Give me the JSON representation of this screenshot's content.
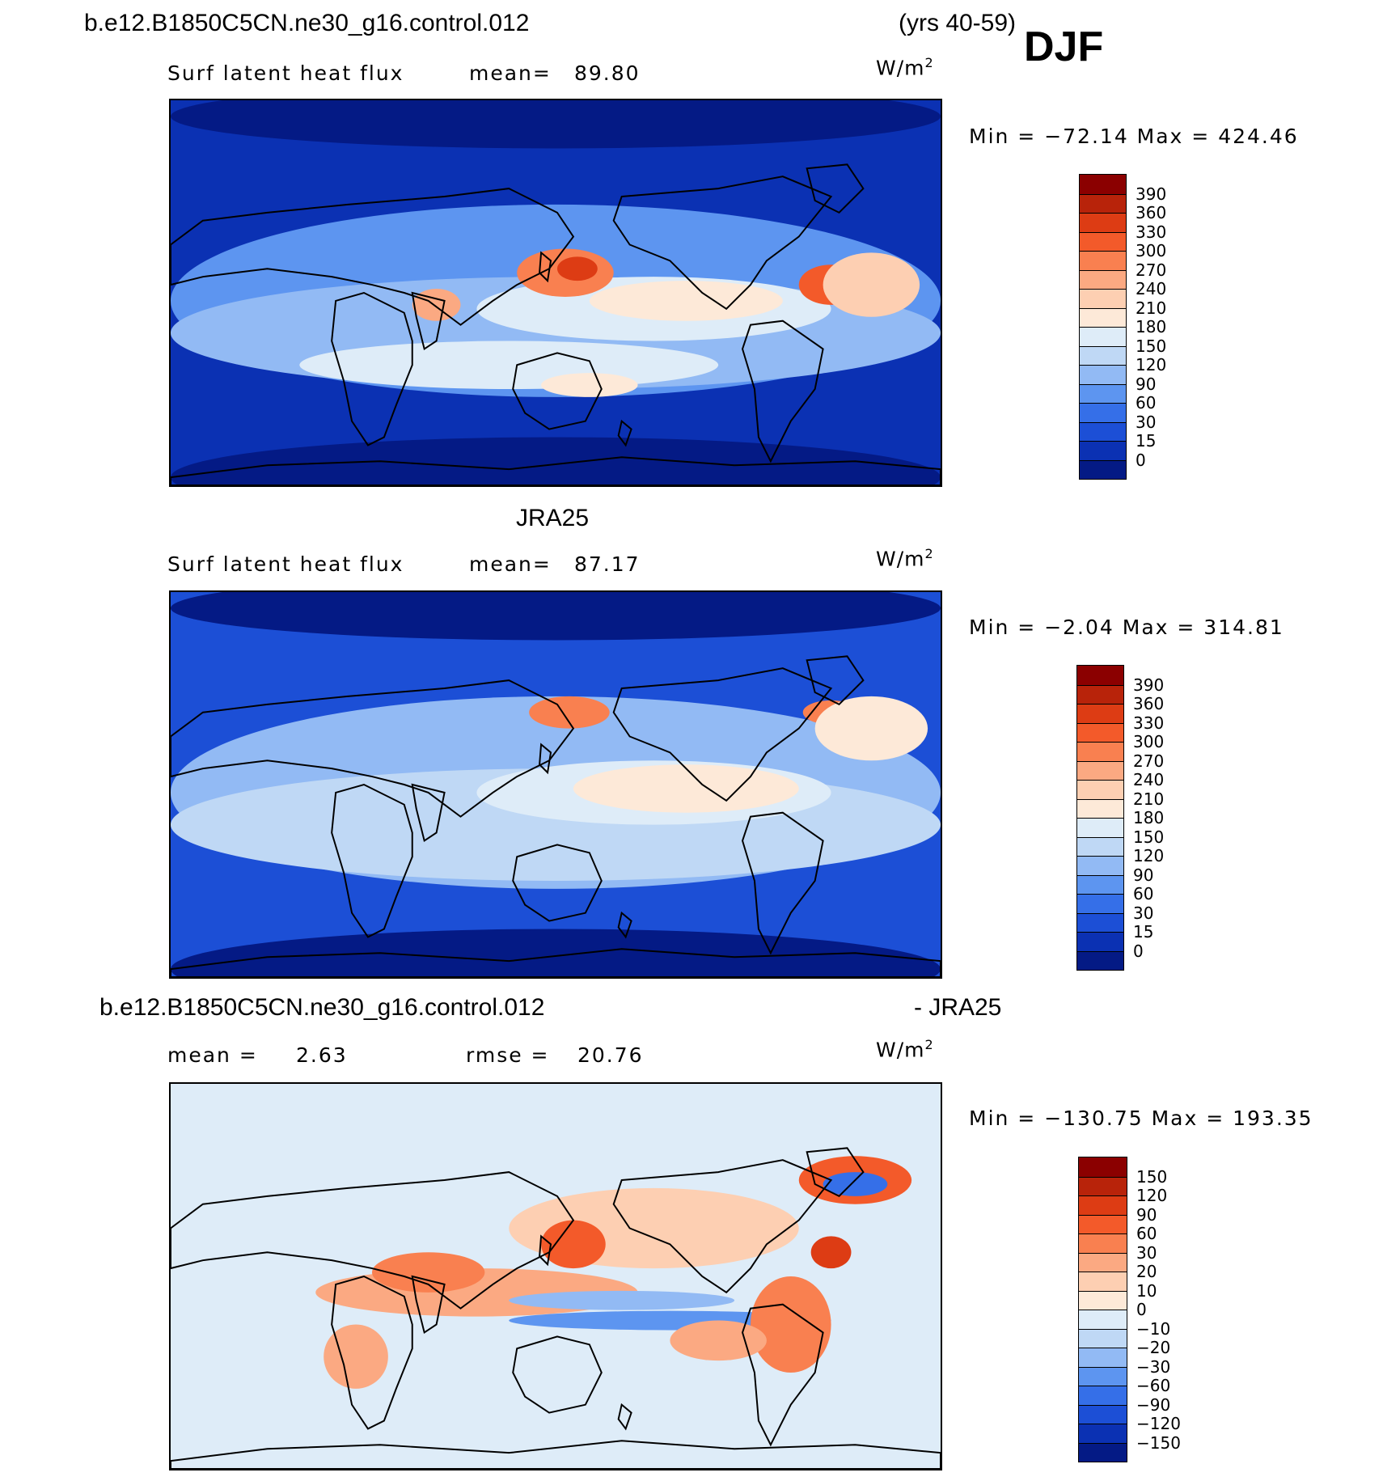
{
  "header": {
    "case_name": "b.e12.B1850C5CN.ne30_g16.control.012",
    "years": "(yrs 40-59)",
    "season": "DJF"
  },
  "panels": [
    {
      "dataset": "b.e12.B1850C5CN.ne30_g16.control.012",
      "variable": "Surf latent heat flux",
      "stat1_label": "mean=",
      "stat1_value": "89.80",
      "units_base": "W/m",
      "units_exp": "2",
      "minmax": "Min = −72.14 Max = 424.46",
      "min": -72.14,
      "max": 424.46
    },
    {
      "dataset": "JRA25",
      "variable": "Surf latent heat flux",
      "stat1_label": "mean=",
      "stat1_value": "87.17",
      "units_base": "W/m",
      "units_exp": "2",
      "minmax": "Min = −2.04 Max = 314.81",
      "min": -2.04,
      "max": 314.81
    },
    {
      "dataset": "b.e12.B1850C5CN.ne30_g16.control.012",
      "dataset_suffix": "- JRA25",
      "stat1_label": "mean =",
      "stat1_value": "2.63",
      "stat2_label": "rmse =",
      "stat2_value": "20.76",
      "units_base": "W/m",
      "units_exp": "2",
      "minmax": "Min = −130.75 Max = 193.35",
      "min": -130.75,
      "max": 193.35
    }
  ],
  "chart_data": [
    {
      "type": "heatmap",
      "title": "b.e12.B1850C5CN.ne30_g16.control.012 (yrs 40-59) DJF",
      "variable": "Surf latent heat flux",
      "units": "W/m2",
      "mean": 89.8,
      "min": -72.14,
      "max": 424.46,
      "colorbar_levels": [
        "390",
        "360",
        "330",
        "300",
        "270",
        "240",
        "210",
        "180",
        "150",
        "120",
        "90",
        "60",
        "30",
        "15",
        "0"
      ],
      "colorbar_colors": [
        "#8b0000",
        "#b8230a",
        "#dd3c14",
        "#f35a2a",
        "#f98050",
        "#fba982",
        "#fdcfb2",
        "#fde9d8",
        "#deecf8",
        "#bfd8f5",
        "#92baf4",
        "#5d95f0",
        "#356fe8",
        "#1c4fd6",
        "#0b31b3",
        "#041a85"
      ]
    },
    {
      "type": "heatmap",
      "title": "JRA25",
      "variable": "Surf latent heat flux",
      "units": "W/m2",
      "mean": 87.17,
      "min": -2.04,
      "max": 314.81,
      "colorbar_levels": [
        "390",
        "360",
        "330",
        "300",
        "270",
        "240",
        "210",
        "180",
        "150",
        "120",
        "90",
        "60",
        "30",
        "15",
        "0"
      ],
      "colorbar_colors": [
        "#8b0000",
        "#b8230a",
        "#dd3c14",
        "#f35a2a",
        "#f98050",
        "#fba982",
        "#fdcfb2",
        "#fde9d8",
        "#deecf8",
        "#bfd8f5",
        "#92baf4",
        "#5d95f0",
        "#356fe8",
        "#1c4fd6",
        "#0b31b3",
        "#041a85"
      ]
    },
    {
      "type": "heatmap",
      "title": "b.e12.B1850C5CN.ne30_g16.control.012 - JRA25",
      "units": "W/m2",
      "mean": 2.63,
      "rmse": 20.76,
      "min": -130.75,
      "max": 193.35,
      "colorbar_levels": [
        "150",
        "120",
        "90",
        "60",
        "30",
        "20",
        "10",
        "0",
        "−10",
        "−20",
        "−30",
        "−60",
        "−90",
        "−120",
        "−150"
      ],
      "colorbar_colors": [
        "#8b0000",
        "#b8230a",
        "#dd3c14",
        "#f35a2a",
        "#f98050",
        "#fba982",
        "#fdcfb2",
        "#fde9d8",
        "#deecf8",
        "#bfd8f5",
        "#92baf4",
        "#5d95f0",
        "#356fe8",
        "#1c4fd6",
        "#0b31b3",
        "#041a85"
      ]
    }
  ]
}
